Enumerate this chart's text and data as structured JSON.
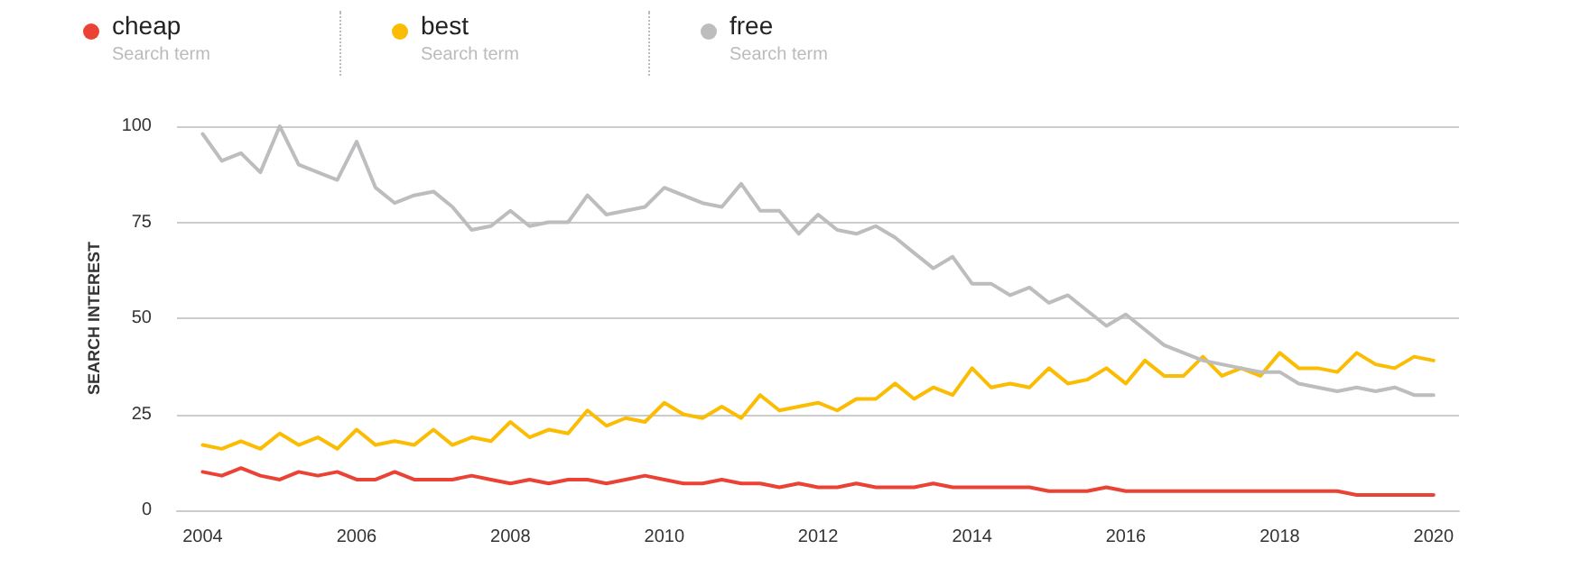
{
  "chart_data": {
    "type": "line",
    "ylabel": "SEARCH INTEREST",
    "annotations": [
      "Search term",
      "Search term",
      "Search term"
    ],
    "x": [
      "2004-01",
      "2004-04",
      "2004-07",
      "2004-10",
      "2005-01",
      "2005-04",
      "2005-07",
      "2005-10",
      "2006-01",
      "2006-04",
      "2006-07",
      "2006-10",
      "2007-01",
      "2007-04",
      "2007-07",
      "2007-10",
      "2008-01",
      "2008-04",
      "2008-07",
      "2008-10",
      "2009-01",
      "2009-04",
      "2009-07",
      "2009-10",
      "2010-01",
      "2010-04",
      "2010-07",
      "2010-10",
      "2011-01",
      "2011-04",
      "2011-07",
      "2011-10",
      "2012-01",
      "2012-04",
      "2012-07",
      "2012-10",
      "2013-01",
      "2013-04",
      "2013-07",
      "2013-10",
      "2014-01",
      "2014-04",
      "2014-07",
      "2014-10",
      "2015-01",
      "2015-04",
      "2015-07",
      "2015-10",
      "2016-01",
      "2016-04",
      "2016-07",
      "2016-10",
      "2017-01",
      "2017-04",
      "2017-07",
      "2017-10",
      "2018-01",
      "2018-04",
      "2018-07",
      "2018-10",
      "2019-01",
      "2019-04",
      "2019-07",
      "2019-10",
      "2020-01"
    ],
    "series": [
      {
        "name": "cheap",
        "color": "#ea4335",
        "values": [
          10,
          9,
          11,
          9,
          8,
          10,
          9,
          10,
          8,
          8,
          10,
          8,
          8,
          8,
          9,
          8,
          7,
          8,
          7,
          8,
          8,
          7,
          8,
          9,
          8,
          7,
          7,
          8,
          7,
          7,
          6,
          7,
          6,
          6,
          7,
          6,
          6,
          6,
          7,
          6,
          6,
          6,
          6,
          6,
          5,
          5,
          5,
          6,
          5,
          5,
          5,
          5,
          5,
          5,
          5,
          5,
          5,
          5,
          5,
          5,
          4,
          4,
          4,
          4,
          4
        ]
      },
      {
        "name": "best",
        "color": "#fbbc04",
        "values": [
          17,
          16,
          18,
          16,
          20,
          17,
          19,
          16,
          21,
          17,
          18,
          17,
          21,
          17,
          19,
          18,
          23,
          19,
          21,
          20,
          26,
          22,
          24,
          23,
          28,
          25,
          24,
          27,
          24,
          30,
          26,
          27,
          28,
          26,
          29,
          29,
          33,
          29,
          32,
          30,
          37,
          32,
          33,
          32,
          37,
          33,
          34,
          37,
          33,
          39,
          35,
          35,
          40,
          35,
          37,
          35,
          41,
          37,
          37,
          36,
          41,
          38,
          37,
          40,
          39
        ]
      },
      {
        "name": "free",
        "color": "#bdbdc0",
        "values": [
          98,
          91,
          93,
          88,
          100,
          90,
          88,
          86,
          96,
          84,
          80,
          82,
          83,
          79,
          73,
          74,
          78,
          74,
          75,
          75,
          82,
          77,
          78,
          79,
          84,
          82,
          80,
          79,
          85,
          78,
          78,
          72,
          77,
          73,
          72,
          74,
          71,
          67,
          63,
          66,
          59,
          59,
          56,
          58,
          54,
          56,
          52,
          48,
          51,
          47,
          43,
          41,
          39,
          38,
          37,
          36,
          36,
          33,
          32,
          31,
          32,
          31,
          32,
          30,
          30
        ]
      }
    ],
    "xlim": [
      "2003-09",
      "2020-05"
    ],
    "xticks": [
      "2004",
      "2006",
      "2008",
      "2010",
      "2012",
      "2014",
      "2016",
      "2018",
      "2020"
    ],
    "ylim": [
      0,
      100
    ],
    "yticks": [
      0,
      25,
      50,
      75,
      100
    ],
    "grid": "y",
    "legend": "top left",
    "marker": "none",
    "line_style": "solid"
  }
}
